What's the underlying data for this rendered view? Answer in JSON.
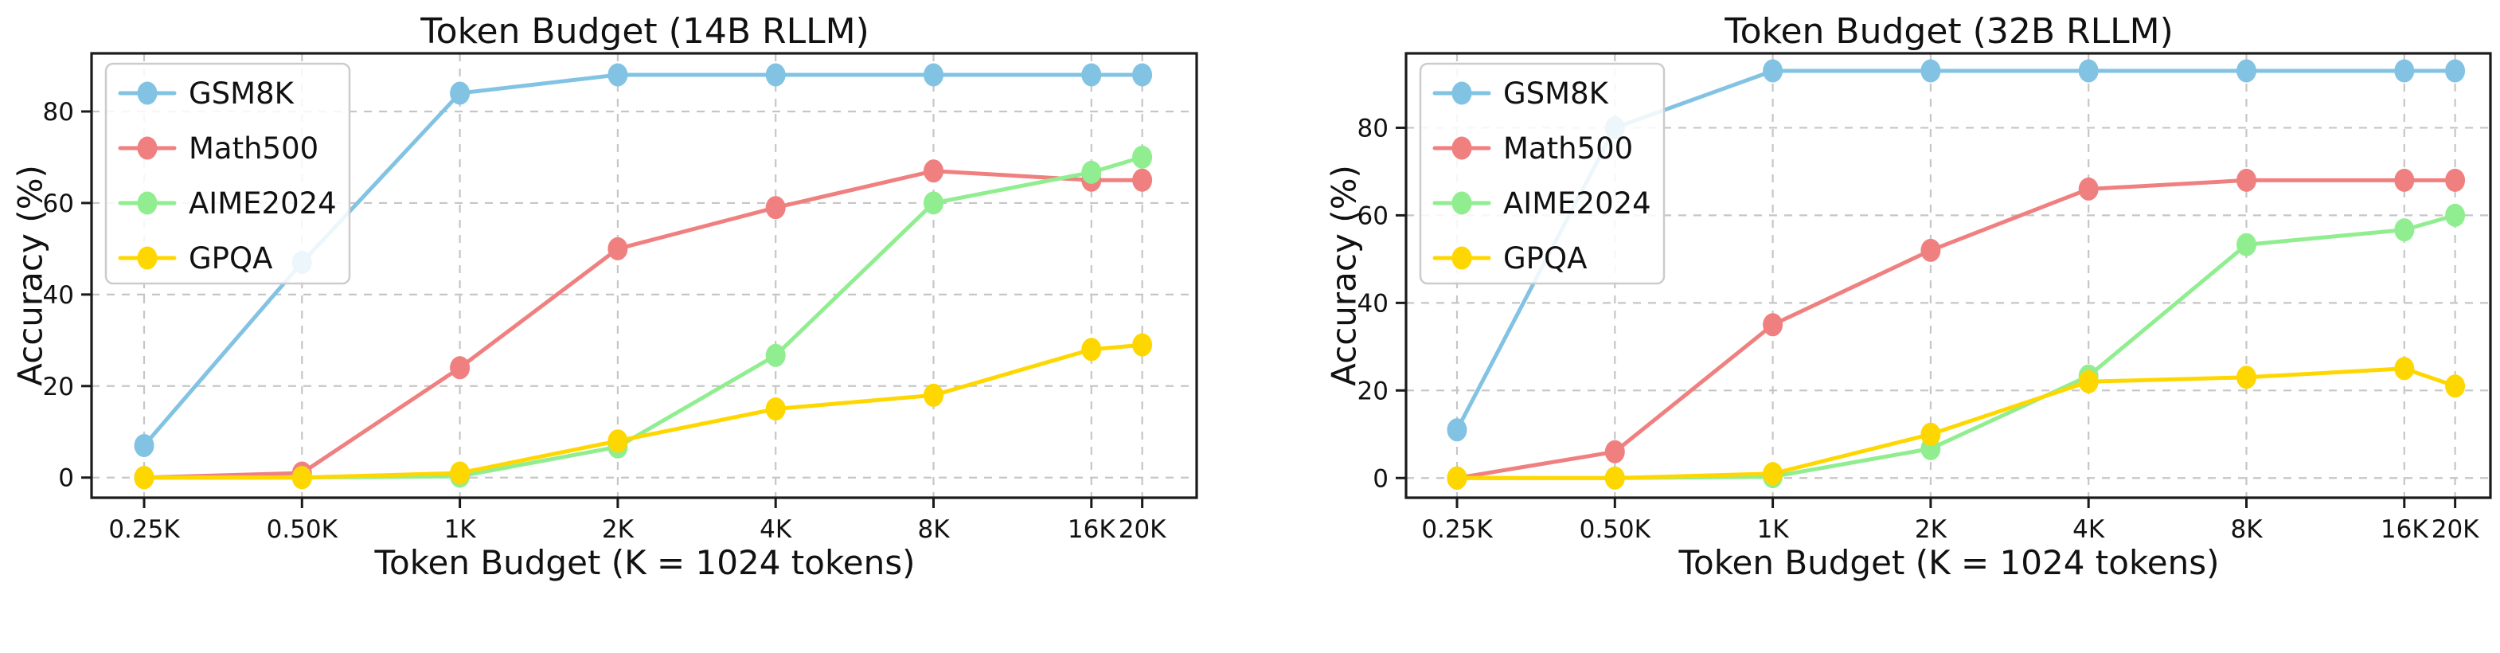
{
  "figure": {
    "background": "#ffffff",
    "text_color": "#111111",
    "grid_color": "#c6c6c6",
    "spine_color": "#1a1a1a",
    "legend_border_color": "#cccccc",
    "legend_fill": "#ffffff"
  },
  "chart_data": [
    {
      "type": "line",
      "title": "Token Budget (14B RLLM)",
      "xlabel": "Token Budget (K = 1024 tokens)",
      "ylabel": "Accuracy (%)",
      "x_scale": "log2",
      "x_values": [
        0.25,
        0.5,
        1,
        2,
        4,
        8,
        16,
        20
      ],
      "x_tick_labels": [
        "0.25K",
        "0.50K",
        "1K",
        "2K",
        "4K",
        "8K",
        "16K",
        "20K"
      ],
      "y_ticks": [
        0,
        20,
        40,
        60,
        80
      ],
      "ylim": [
        -4.4,
        92.7
      ],
      "grid": true,
      "legend_position": "upper-left",
      "series": [
        {
          "name": "GSM8K",
          "color": "#82c3e3",
          "values": [
            7,
            47,
            84,
            88,
            88,
            88,
            88,
            88
          ]
        },
        {
          "name": "Math500",
          "color": "#f08080",
          "values": [
            0,
            1,
            24,
            50,
            59,
            67,
            65,
            65
          ]
        },
        {
          "name": "AIME2024",
          "color": "#90ee90",
          "values": [
            0,
            0,
            0.3,
            6.7,
            26.7,
            60,
            66.7,
            70
          ]
        },
        {
          "name": "GPQA",
          "color": "#ffd700",
          "values": [
            0,
            0,
            1,
            8,
            15,
            18,
            28,
            29
          ]
        }
      ]
    },
    {
      "type": "line",
      "title": "Token Budget (32B RLLM)",
      "xlabel": "Token Budget (K = 1024 tokens)",
      "ylabel": "Accuracy (%)",
      "x_scale": "log2",
      "x_values": [
        0.25,
        0.5,
        1,
        2,
        4,
        8,
        16,
        20
      ],
      "x_tick_labels": [
        "0.25K",
        "0.50K",
        "1K",
        "2K",
        "4K",
        "8K",
        "16K",
        "20K"
      ],
      "y_ticks": [
        0,
        20,
        40,
        60,
        80
      ],
      "ylim": [
        -4.5,
        97.0
      ],
      "grid": true,
      "legend_position": "upper-left",
      "series": [
        {
          "name": "GSM8K",
          "color": "#82c3e3",
          "values": [
            11,
            80,
            93,
            93,
            93,
            93,
            93,
            93
          ]
        },
        {
          "name": "Math500",
          "color": "#f08080",
          "values": [
            0,
            6,
            35,
            52,
            66,
            68,
            68,
            68
          ]
        },
        {
          "name": "AIME2024",
          "color": "#90ee90",
          "values": [
            0,
            0,
            0.3,
            6.7,
            23.3,
            53.3,
            56.7,
            60
          ]
        },
        {
          "name": "GPQA",
          "color": "#ffd700",
          "values": [
            0,
            0,
            1,
            10,
            22,
            23,
            25,
            21
          ]
        }
      ]
    }
  ]
}
